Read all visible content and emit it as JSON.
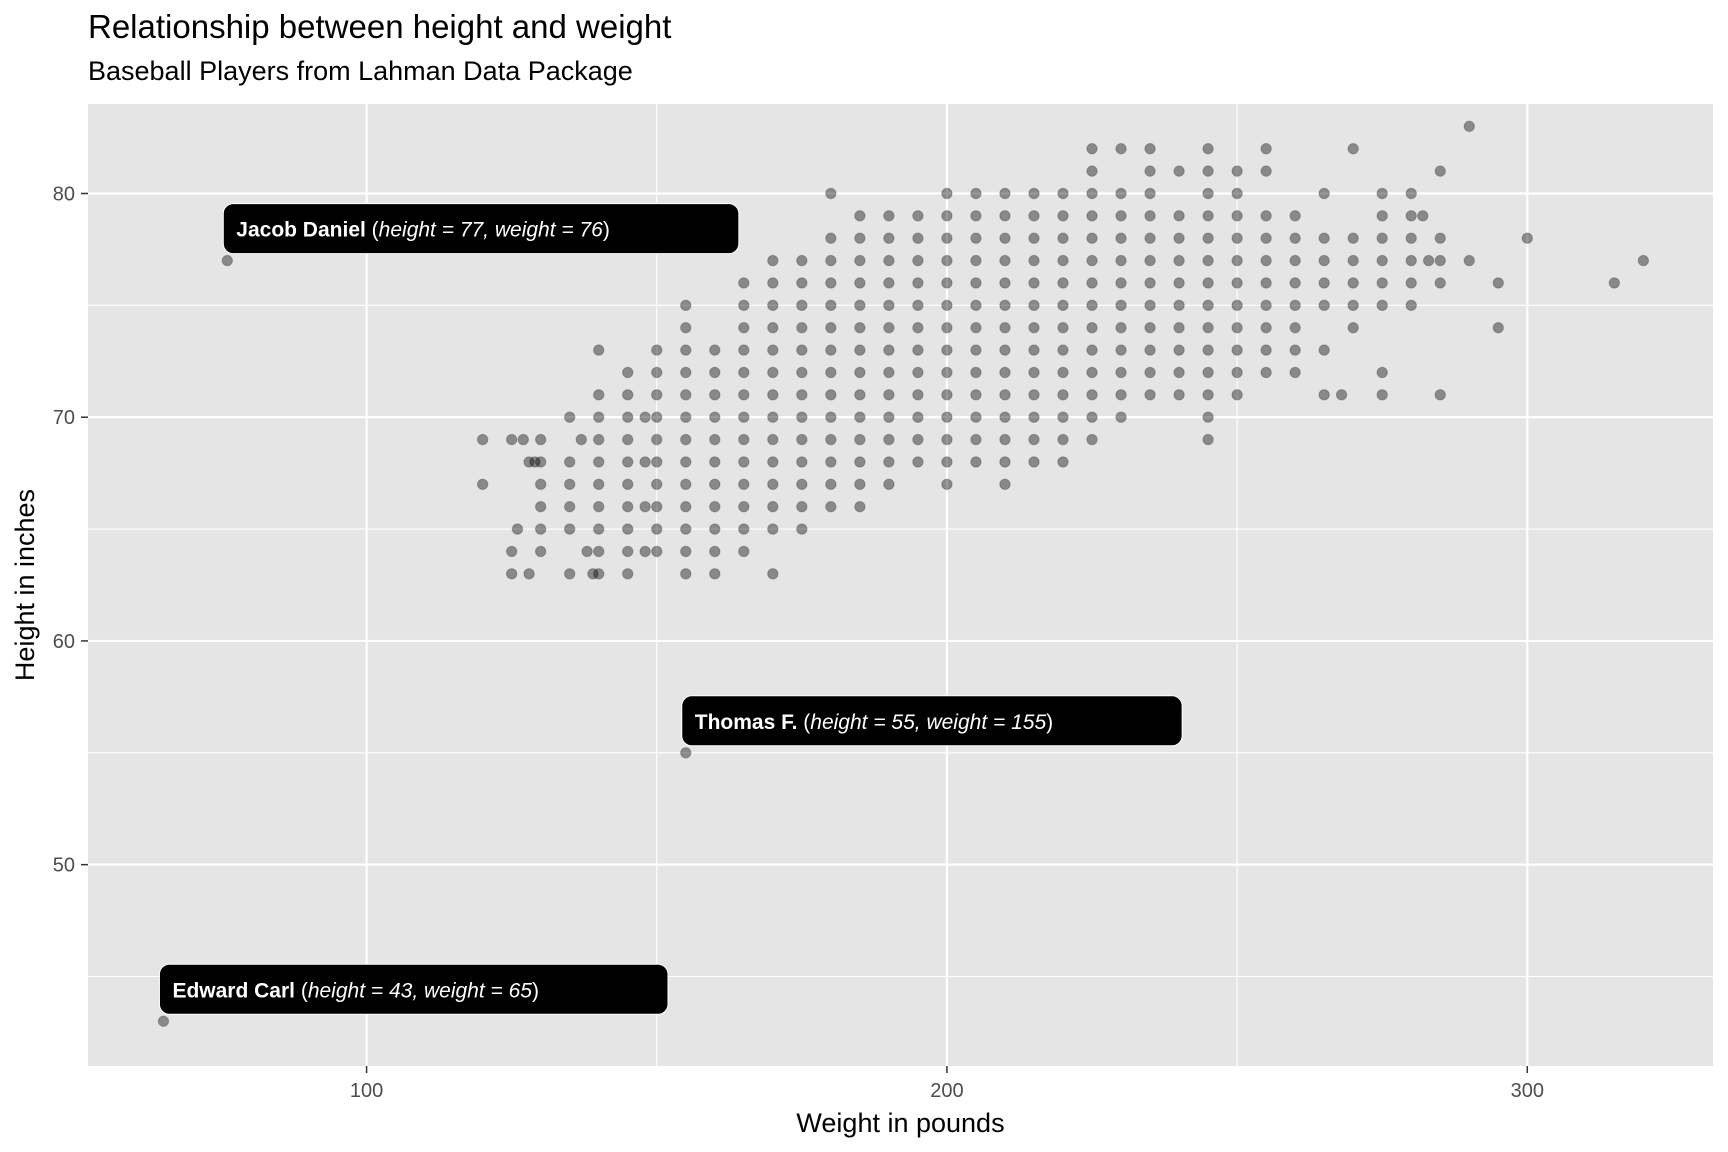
{
  "chart_data": {
    "type": "scatter",
    "title": "Relationship between height and weight",
    "subtitle": "Baseball Players from Lahman Data Package",
    "xlabel": "Weight in pounds",
    "ylabel": "Height in inches",
    "xlim": [
      52,
      332
    ],
    "ylim": [
      41,
      84
    ],
    "x_ticks": [
      100,
      200,
      300
    ],
    "y_ticks": [
      50,
      60,
      70,
      80
    ],
    "grid": true,
    "point_color": "#000000",
    "point_alpha": 0.4,
    "panel_background": "#e5e5e5",
    "annotations": [
      {
        "name": "Jacob Daniel",
        "detail": "height = 77, weight = 76",
        "x": 76,
        "y": 77
      },
      {
        "name": "Thomas F.",
        "detail": "height = 55, weight = 155",
        "x": 155,
        "y": 55
      },
      {
        "name": "Edward Carl",
        "detail": "height = 43, weight = 65",
        "x": 65,
        "y": 43
      }
    ],
    "points": [
      [
        65,
        43
      ],
      [
        76,
        77
      ],
      [
        155,
        55
      ],
      [
        120,
        69
      ],
      [
        120,
        67
      ],
      [
        125,
        69
      ],
      [
        125,
        64
      ],
      [
        125,
        63
      ],
      [
        126,
        65
      ],
      [
        127,
        69
      ],
      [
        128,
        68
      ],
      [
        129,
        68
      ],
      [
        128,
        63
      ],
      [
        130,
        69
      ],
      [
        130,
        68
      ],
      [
        130,
        67
      ],
      [
        130,
        66
      ],
      [
        130,
        65
      ],
      [
        130,
        64
      ],
      [
        135,
        70
      ],
      [
        135,
        68
      ],
      [
        135,
        67
      ],
      [
        135,
        66
      ],
      [
        135,
        65
      ],
      [
        135,
        63
      ],
      [
        137,
        69
      ],
      [
        138,
        64
      ],
      [
        139,
        63
      ],
      [
        140,
        73
      ],
      [
        140,
        71
      ],
      [
        140,
        70
      ],
      [
        140,
        69
      ],
      [
        140,
        68
      ],
      [
        140,
        67
      ],
      [
        140,
        66
      ],
      [
        140,
        65
      ],
      [
        140,
        64
      ],
      [
        140,
        63
      ],
      [
        145,
        72
      ],
      [
        145,
        71
      ],
      [
        145,
        70
      ],
      [
        145,
        69
      ],
      [
        145,
        68
      ],
      [
        145,
        67
      ],
      [
        145,
        66
      ],
      [
        145,
        65
      ],
      [
        145,
        64
      ],
      [
        145,
        63
      ],
      [
        148,
        70
      ],
      [
        148,
        68
      ],
      [
        148,
        66
      ],
      [
        148,
        64
      ],
      [
        150,
        73
      ],
      [
        150,
        72
      ],
      [
        150,
        71
      ],
      [
        150,
        70
      ],
      [
        150,
        69
      ],
      [
        150,
        68
      ],
      [
        150,
        67
      ],
      [
        150,
        66
      ],
      [
        150,
        65
      ],
      [
        150,
        64
      ],
      [
        155,
        75
      ],
      [
        155,
        74
      ],
      [
        155,
        73
      ],
      [
        155,
        72
      ],
      [
        155,
        71
      ],
      [
        155,
        70
      ],
      [
        155,
        69
      ],
      [
        155,
        68
      ],
      [
        155,
        67
      ],
      [
        155,
        66
      ],
      [
        155,
        65
      ],
      [
        155,
        64
      ],
      [
        155,
        63
      ],
      [
        160,
        73
      ],
      [
        160,
        72
      ],
      [
        160,
        71
      ],
      [
        160,
        70
      ],
      [
        160,
        69
      ],
      [
        160,
        68
      ],
      [
        160,
        67
      ],
      [
        160,
        66
      ],
      [
        160,
        65
      ],
      [
        160,
        64
      ],
      [
        160,
        63
      ],
      [
        165,
        76
      ],
      [
        165,
        75
      ],
      [
        165,
        74
      ],
      [
        165,
        73
      ],
      [
        165,
        72
      ],
      [
        165,
        71
      ],
      [
        165,
        70
      ],
      [
        165,
        69
      ],
      [
        165,
        68
      ],
      [
        165,
        67
      ],
      [
        165,
        66
      ],
      [
        165,
        65
      ],
      [
        165,
        64
      ],
      [
        170,
        77
      ],
      [
        170,
        76
      ],
      [
        170,
        75
      ],
      [
        170,
        74
      ],
      [
        170,
        73
      ],
      [
        170,
        72
      ],
      [
        170,
        71
      ],
      [
        170,
        70
      ],
      [
        170,
        69
      ],
      [
        170,
        68
      ],
      [
        170,
        67
      ],
      [
        170,
        66
      ],
      [
        170,
        65
      ],
      [
        170,
        63
      ],
      [
        175,
        77
      ],
      [
        175,
        76
      ],
      [
        175,
        75
      ],
      [
        175,
        74
      ],
      [
        175,
        73
      ],
      [
        175,
        72
      ],
      [
        175,
        71
      ],
      [
        175,
        70
      ],
      [
        175,
        69
      ],
      [
        175,
        68
      ],
      [
        175,
        67
      ],
      [
        175,
        66
      ],
      [
        175,
        65
      ],
      [
        180,
        80
      ],
      [
        180,
        78
      ],
      [
        180,
        77
      ],
      [
        180,
        76
      ],
      [
        180,
        75
      ],
      [
        180,
        74
      ],
      [
        180,
        73
      ],
      [
        180,
        72
      ],
      [
        180,
        71
      ],
      [
        180,
        70
      ],
      [
        180,
        69
      ],
      [
        180,
        68
      ],
      [
        180,
        67
      ],
      [
        180,
        66
      ],
      [
        185,
        79
      ],
      [
        185,
        78
      ],
      [
        185,
        77
      ],
      [
        185,
        76
      ],
      [
        185,
        75
      ],
      [
        185,
        74
      ],
      [
        185,
        73
      ],
      [
        185,
        72
      ],
      [
        185,
        71
      ],
      [
        185,
        70
      ],
      [
        185,
        69
      ],
      [
        185,
        68
      ],
      [
        185,
        67
      ],
      [
        185,
        66
      ],
      [
        190,
        79
      ],
      [
        190,
        78
      ],
      [
        190,
        77
      ],
      [
        190,
        76
      ],
      [
        190,
        75
      ],
      [
        190,
        74
      ],
      [
        190,
        73
      ],
      [
        190,
        72
      ],
      [
        190,
        71
      ],
      [
        190,
        70
      ],
      [
        190,
        69
      ],
      [
        190,
        68
      ],
      [
        190,
        67
      ],
      [
        195,
        79
      ],
      [
        195,
        78
      ],
      [
        195,
        77
      ],
      [
        195,
        76
      ],
      [
        195,
        75
      ],
      [
        195,
        74
      ],
      [
        195,
        73
      ],
      [
        195,
        72
      ],
      [
        195,
        71
      ],
      [
        195,
        70
      ],
      [
        195,
        69
      ],
      [
        195,
        68
      ],
      [
        200,
        80
      ],
      [
        200,
        79
      ],
      [
        200,
        78
      ],
      [
        200,
        77
      ],
      [
        200,
        76
      ],
      [
        200,
        75
      ],
      [
        200,
        74
      ],
      [
        200,
        73
      ],
      [
        200,
        72
      ],
      [
        200,
        71
      ],
      [
        200,
        70
      ],
      [
        200,
        69
      ],
      [
        200,
        68
      ],
      [
        200,
        67
      ],
      [
        205,
        80
      ],
      [
        205,
        79
      ],
      [
        205,
        78
      ],
      [
        205,
        77
      ],
      [
        205,
        76
      ],
      [
        205,
        75
      ],
      [
        205,
        74
      ],
      [
        205,
        73
      ],
      [
        205,
        72
      ],
      [
        205,
        71
      ],
      [
        205,
        70
      ],
      [
        205,
        69
      ],
      [
        205,
        68
      ],
      [
        210,
        80
      ],
      [
        210,
        79
      ],
      [
        210,
        78
      ],
      [
        210,
        77
      ],
      [
        210,
        76
      ],
      [
        210,
        75
      ],
      [
        210,
        74
      ],
      [
        210,
        73
      ],
      [
        210,
        72
      ],
      [
        210,
        71
      ],
      [
        210,
        70
      ],
      [
        210,
        69
      ],
      [
        210,
        68
      ],
      [
        210,
        67
      ],
      [
        215,
        80
      ],
      [
        215,
        79
      ],
      [
        215,
        78
      ],
      [
        215,
        77
      ],
      [
        215,
        76
      ],
      [
        215,
        75
      ],
      [
        215,
        74
      ],
      [
        215,
        73
      ],
      [
        215,
        72
      ],
      [
        215,
        71
      ],
      [
        215,
        70
      ],
      [
        215,
        69
      ],
      [
        215,
        68
      ],
      [
        220,
        80
      ],
      [
        220,
        79
      ],
      [
        220,
        78
      ],
      [
        220,
        77
      ],
      [
        220,
        76
      ],
      [
        220,
        75
      ],
      [
        220,
        74
      ],
      [
        220,
        73
      ],
      [
        220,
        72
      ],
      [
        220,
        71
      ],
      [
        220,
        70
      ],
      [
        220,
        69
      ],
      [
        220,
        68
      ],
      [
        225,
        82
      ],
      [
        225,
        81
      ],
      [
        225,
        80
      ],
      [
        225,
        79
      ],
      [
        225,
        78
      ],
      [
        225,
        77
      ],
      [
        225,
        76
      ],
      [
        225,
        75
      ],
      [
        225,
        74
      ],
      [
        225,
        73
      ],
      [
        225,
        72
      ],
      [
        225,
        71
      ],
      [
        225,
        70
      ],
      [
        225,
        69
      ],
      [
        230,
        82
      ],
      [
        230,
        80
      ],
      [
        230,
        79
      ],
      [
        230,
        78
      ],
      [
        230,
        77
      ],
      [
        230,
        76
      ],
      [
        230,
        75
      ],
      [
        230,
        74
      ],
      [
        230,
        73
      ],
      [
        230,
        72
      ],
      [
        230,
        71
      ],
      [
        230,
        70
      ],
      [
        235,
        82
      ],
      [
        235,
        81
      ],
      [
        235,
        80
      ],
      [
        235,
        79
      ],
      [
        235,
        78
      ],
      [
        235,
        77
      ],
      [
        235,
        76
      ],
      [
        235,
        75
      ],
      [
        235,
        74
      ],
      [
        235,
        73
      ],
      [
        235,
        72
      ],
      [
        235,
        71
      ],
      [
        240,
        81
      ],
      [
        240,
        79
      ],
      [
        240,
        78
      ],
      [
        240,
        77
      ],
      [
        240,
        76
      ],
      [
        240,
        75
      ],
      [
        240,
        74
      ],
      [
        240,
        73
      ],
      [
        240,
        72
      ],
      [
        240,
        71
      ],
      [
        245,
        82
      ],
      [
        245,
        81
      ],
      [
        245,
        80
      ],
      [
        245,
        79
      ],
      [
        245,
        78
      ],
      [
        245,
        77
      ],
      [
        245,
        76
      ],
      [
        245,
        75
      ],
      [
        245,
        74
      ],
      [
        245,
        73
      ],
      [
        245,
        72
      ],
      [
        245,
        71
      ],
      [
        245,
        70
      ],
      [
        245,
        69
      ],
      [
        250,
        81
      ],
      [
        250,
        80
      ],
      [
        250,
        79
      ],
      [
        250,
        78
      ],
      [
        250,
        77
      ],
      [
        250,
        76
      ],
      [
        250,
        75
      ],
      [
        250,
        74
      ],
      [
        250,
        73
      ],
      [
        250,
        72
      ],
      [
        250,
        71
      ],
      [
        255,
        82
      ],
      [
        255,
        81
      ],
      [
        255,
        79
      ],
      [
        255,
        78
      ],
      [
        255,
        77
      ],
      [
        255,
        76
      ],
      [
        255,
        75
      ],
      [
        255,
        74
      ],
      [
        255,
        73
      ],
      [
        255,
        72
      ],
      [
        260,
        79
      ],
      [
        260,
        78
      ],
      [
        260,
        77
      ],
      [
        260,
        76
      ],
      [
        260,
        75
      ],
      [
        260,
        74
      ],
      [
        260,
        73
      ],
      [
        260,
        72
      ],
      [
        265,
        80
      ],
      [
        265,
        78
      ],
      [
        265,
        77
      ],
      [
        265,
        76
      ],
      [
        265,
        75
      ],
      [
        265,
        73
      ],
      [
        265,
        71
      ],
      [
        268,
        71
      ],
      [
        270,
        82
      ],
      [
        270,
        78
      ],
      [
        270,
        77
      ],
      [
        270,
        76
      ],
      [
        270,
        75
      ],
      [
        270,
        74
      ],
      [
        275,
        80
      ],
      [
        275,
        79
      ],
      [
        275,
        78
      ],
      [
        275,
        77
      ],
      [
        275,
        76
      ],
      [
        275,
        75
      ],
      [
        275,
        72
      ],
      [
        275,
        71
      ],
      [
        280,
        80
      ],
      [
        280,
        79
      ],
      [
        280,
        78
      ],
      [
        280,
        77
      ],
      [
        280,
        76
      ],
      [
        280,
        75
      ],
      [
        282,
        79
      ],
      [
        283,
        77
      ],
      [
        285,
        81
      ],
      [
        285,
        78
      ],
      [
        285,
        77
      ],
      [
        285,
        76
      ],
      [
        285,
        71
      ],
      [
        290,
        83
      ],
      [
        290,
        77
      ],
      [
        295,
        76
      ],
      [
        295,
        74
      ],
      [
        300,
        78
      ],
      [
        315,
        76
      ],
      [
        320,
        77
      ]
    ]
  }
}
